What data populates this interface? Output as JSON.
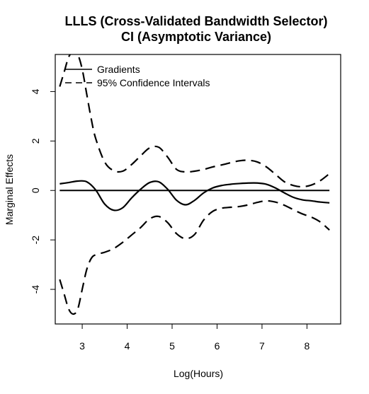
{
  "chart_data": {
    "type": "line",
    "title": "LLLS (Cross-Validated Bandwidth Selector)",
    "subtitle": "CI (Asymptotic Variance)",
    "xlabel": "Log(Hours)",
    "ylabel": "Marginal Effects",
    "xlim": [
      2.4,
      8.75
    ],
    "ylim": [
      -5.4,
      5.5
    ],
    "xticks": [
      3,
      4,
      5,
      6,
      7,
      8
    ],
    "yticks": [
      -4,
      -2,
      0,
      2,
      4
    ],
    "grid": false,
    "legend_position": "top-left",
    "zero_line": 0,
    "series": [
      {
        "name": "Gradients",
        "style": "solid",
        "color": "#000000",
        "x": [
          2.5,
          2.7,
          2.9,
          3.1,
          3.3,
          3.5,
          3.7,
          3.9,
          4.1,
          4.3,
          4.5,
          4.7,
          4.9,
          5.1,
          5.3,
          5.5,
          5.7,
          5.9,
          6.1,
          6.3,
          6.5,
          6.7,
          6.9,
          7.1,
          7.3,
          7.5,
          7.7,
          7.9,
          8.1,
          8.3,
          8.5
        ],
        "y": [
          0.27,
          0.32,
          0.38,
          0.35,
          0.02,
          -0.55,
          -0.8,
          -0.7,
          -0.3,
          0.05,
          0.32,
          0.35,
          0.05,
          -0.4,
          -0.58,
          -0.4,
          -0.1,
          0.1,
          0.2,
          0.25,
          0.28,
          0.3,
          0.3,
          0.25,
          0.1,
          -0.1,
          -0.28,
          -0.38,
          -0.42,
          -0.47,
          -0.5
        ]
      },
      {
        "name": "95% Confidence Intervals",
        "style": "dashed",
        "color": "#000000",
        "x": [
          2.5,
          2.6,
          2.7,
          2.8,
          2.9,
          3.0,
          3.1,
          3.2,
          3.3,
          3.5,
          3.7,
          3.9,
          4.1,
          4.3,
          4.5,
          4.7,
          4.9,
          5.1,
          5.3,
          5.5,
          5.7,
          5.9,
          6.1,
          6.3,
          6.5,
          6.7,
          6.9,
          7.1,
          7.3,
          7.5,
          7.7,
          7.9,
          8.1,
          8.3,
          8.5
        ],
        "y": [
          4.2,
          4.8,
          5.4,
          5.6,
          5.5,
          4.9,
          3.9,
          2.9,
          2.1,
          1.15,
          0.8,
          0.78,
          1.05,
          1.4,
          1.72,
          1.75,
          1.35,
          0.85,
          0.75,
          0.78,
          0.85,
          0.95,
          1.03,
          1.12,
          1.2,
          1.22,
          1.15,
          0.95,
          0.65,
          0.35,
          0.2,
          0.15,
          0.22,
          0.4,
          0.68
        ]
      },
      {
        "name": "95% Confidence Intervals",
        "style": "dashed",
        "color": "#000000",
        "x": [
          2.5,
          2.6,
          2.7,
          2.8,
          2.9,
          3.0,
          3.1,
          3.2,
          3.3,
          3.5,
          3.7,
          3.9,
          4.1,
          4.3,
          4.5,
          4.7,
          4.9,
          5.1,
          5.3,
          5.5,
          5.7,
          5.9,
          6.1,
          6.3,
          6.5,
          6.7,
          6.9,
          7.1,
          7.3,
          7.5,
          7.7,
          7.9,
          8.1,
          8.3,
          8.5
        ],
        "y": [
          -3.6,
          -4.2,
          -4.8,
          -5.0,
          -4.8,
          -4.0,
          -3.2,
          -2.75,
          -2.6,
          -2.5,
          -2.35,
          -2.1,
          -1.8,
          -1.5,
          -1.15,
          -1.05,
          -1.3,
          -1.75,
          -1.95,
          -1.78,
          -1.2,
          -0.85,
          -0.72,
          -0.68,
          -0.65,
          -0.58,
          -0.48,
          -0.42,
          -0.47,
          -0.6,
          -0.78,
          -0.95,
          -1.08,
          -1.28,
          -1.6
        ]
      }
    ]
  }
}
